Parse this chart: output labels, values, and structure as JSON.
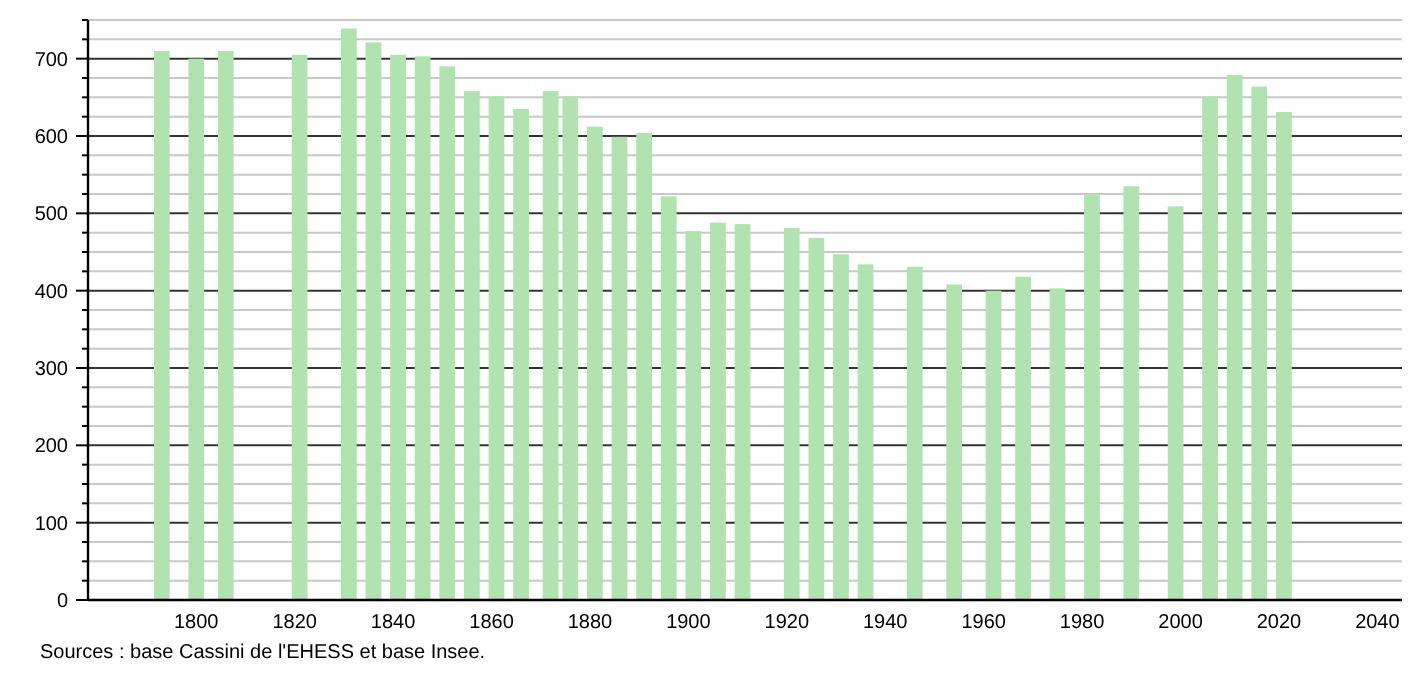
{
  "chart_data": {
    "type": "bar",
    "x": [
      1793,
      1800,
      1806,
      1821,
      1831,
      1836,
      1841,
      1846,
      1851,
      1856,
      1861,
      1866,
      1872,
      1876,
      1881,
      1886,
      1891,
      1896,
      1901,
      1906,
      1911,
      1921,
      1926,
      1931,
      1936,
      1946,
      1954,
      1962,
      1968,
      1975,
      1982,
      1990,
      1999,
      2006,
      2011,
      2016,
      2021
    ],
    "values": [
      710,
      700,
      710,
      705,
      739,
      721,
      705,
      703,
      690,
      658,
      651,
      635,
      658,
      651,
      612,
      599,
      604,
      522,
      477,
      488,
      486,
      481,
      468,
      447,
      434,
      431,
      408,
      400,
      418,
      403,
      525,
      535,
      509,
      651,
      679,
      664,
      631
    ],
    "color": "#b0e3b0",
    "xlim": [
      1778,
      2045
    ],
    "xticks": [
      1800,
      1820,
      1840,
      1860,
      1880,
      1900,
      1920,
      1940,
      1960,
      1980,
      2000,
      2020,
      2040
    ],
    "ylim": [
      0,
      750
    ],
    "yticks": [
      0,
      {
        "value": 25,
        "label": null
      },
      {
        "value": 50,
        "label": null
      },
      {
        "value": 75,
        "label": null
      },
      100,
      {
        "value": 125,
        "label": null
      },
      {
        "value": 150,
        "label": null
      },
      {
        "value": 175,
        "label": null
      },
      200,
      {
        "value": 225,
        "label": null
      },
      {
        "value": 250,
        "label": null
      },
      {
        "value": 275,
        "label": null
      },
      300,
      {
        "value": 325,
        "label": null
      },
      {
        "value": 350,
        "label": null
      },
      {
        "value": 375,
        "label": null
      },
      400,
      {
        "value": 425,
        "label": null
      },
      {
        "value": 450,
        "label": null
      },
      {
        "value": 475,
        "label": null
      },
      500,
      {
        "value": 525,
        "label": null
      },
      {
        "value": 550,
        "label": null
      },
      {
        "value": 575,
        "label": null
      },
      600,
      {
        "value": 625,
        "label": null
      },
      {
        "value": 650,
        "label": null
      },
      {
        "value": 675,
        "label": null
      },
      700,
      {
        "value": 725,
        "label": null
      },
      {
        "value": 750,
        "label": null
      }
    ],
    "grid": "y",
    "annotations": [
      "Sources : base Cassini de l'EHESS et base Insee."
    ]
  }
}
